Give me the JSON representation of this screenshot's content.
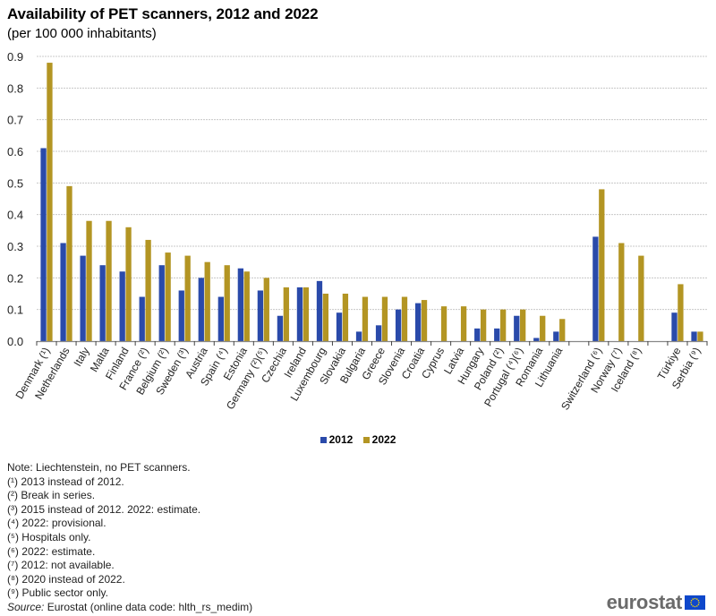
{
  "header": {
    "title": "Availability of PET scanners, 2012 and 2022",
    "subtitle": "(per 100 000 inhabitants)"
  },
  "chart_data": {
    "type": "bar",
    "title": "Availability of PET scanners, 2012 and 2022",
    "subtitle": "(per 100 000 inhabitants)",
    "xlabel": "",
    "ylabel": "",
    "ylim": [
      0,
      0.9
    ],
    "yticks": [
      "0.0",
      "0.1",
      "0.2",
      "0.3",
      "0.4",
      "0.5",
      "0.6",
      "0.7",
      "0.8",
      "0.9"
    ],
    "grid": true,
    "legend_position": "bottom-center",
    "categories": [
      "Denmark (¹)",
      "Netherlands",
      "Italy",
      "Malta",
      "Finland",
      "France (²)",
      "Belgium (²)",
      "Sweden (³)",
      "Austria",
      "Spain (⁴)",
      "Estonia",
      "Germany (²)(⁵)",
      "Czechia",
      "Ireland",
      "Luxembourg",
      "Slovakia",
      "Bulgaria",
      "Greece",
      "Slovenia",
      "Croatia",
      "Cyprus",
      "Latvia",
      "Hungary",
      "Poland (²)",
      "Portugal (⁴)(⁶)",
      "Romania",
      "Lithuania",
      "",
      "Switzerland (⁶)",
      "Norway (⁷)",
      "Iceland (⁸)",
      "",
      "Türkiye",
      "Serbia (⁹)"
    ],
    "series": [
      {
        "name": "2012",
        "color": "#2a4aaa",
        "values": [
          0.61,
          0.31,
          0.27,
          0.24,
          0.22,
          0.14,
          0.24,
          0.16,
          0.2,
          0.14,
          0.23,
          0.16,
          0.08,
          0.17,
          0.19,
          0.09,
          0.03,
          0.05,
          0.1,
          0.12,
          null,
          null,
          0.04,
          0.04,
          0.08,
          0.01,
          0.03,
          null,
          0.33,
          null,
          null,
          null,
          0.09,
          0.03
        ]
      },
      {
        "name": "2022",
        "color": "#b39523",
        "values": [
          0.88,
          0.49,
          0.38,
          0.38,
          0.36,
          0.32,
          0.28,
          0.27,
          0.25,
          0.24,
          0.22,
          0.2,
          0.17,
          0.17,
          0.15,
          0.15,
          0.14,
          0.14,
          0.14,
          0.13,
          0.11,
          0.11,
          0.1,
          0.1,
          0.1,
          0.08,
          0.07,
          null,
          0.48,
          0.31,
          0.27,
          null,
          0.18,
          0.03
        ]
      }
    ]
  },
  "legend": {
    "items": [
      {
        "label": "2012",
        "color": "#2a4aaa"
      },
      {
        "label": "2022",
        "color": "#b39523"
      }
    ]
  },
  "notes": {
    "lines": [
      "Note: Liechtenstein, no PET scanners.",
      "(¹) 2013 instead of 2012.",
      "(²) Break in series.",
      "(³) 2015 instead of 2012. 2022: estimate.",
      "(⁴) 2022: provisional.",
      "(⁵) Hospitals only.",
      "(⁶) 2022: estimate.",
      "(⁷) 2012: not available.",
      "(⁸) 2020 instead of 2022.",
      "(⁹) Public sector only."
    ],
    "source_label": "Source:",
    "source_text": " Eurostat (online data code: hlth_rs_medim)"
  },
  "branding": {
    "logo_text": "eurostat",
    "flag_icon": "eu-flag-icon"
  }
}
